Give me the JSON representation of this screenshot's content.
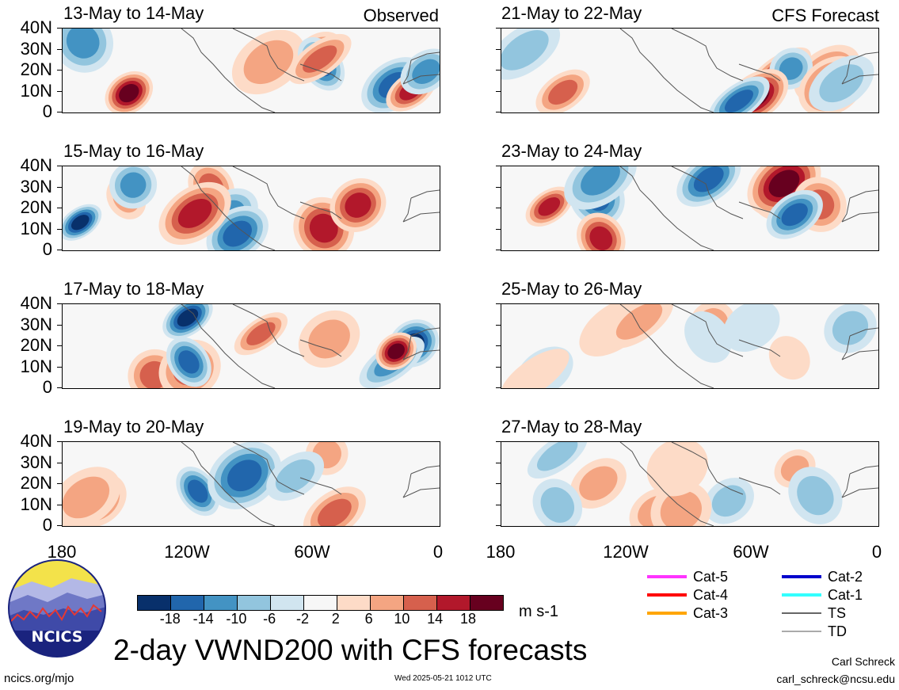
{
  "labels": {
    "observed": "Observed",
    "forecast": "CFS Forecast"
  },
  "panels": [
    {
      "title": "13-May to 14-May"
    },
    {
      "title": "21-May to 22-May"
    },
    {
      "title": "15-May to 16-May"
    },
    {
      "title": "23-May to 24-May"
    },
    {
      "title": "17-May to 18-May"
    },
    {
      "title": "25-May to 26-May"
    },
    {
      "title": "19-May to 20-May"
    },
    {
      "title": "27-May to 28-May"
    }
  ],
  "y_axis": [
    "40N",
    "30N",
    "20N",
    "10N",
    "0"
  ],
  "x_axis": [
    "180",
    "120W",
    "60W",
    "0"
  ],
  "colorbar": {
    "colors": [
      "#08306b",
      "#2166ac",
      "#4393c3",
      "#92c5de",
      "#d1e5f0",
      "#f7f7f7",
      "#fddbc7",
      "#f4a582",
      "#d6604d",
      "#b2182b",
      "#67001f"
    ],
    "ticks": [
      "-18",
      "-14",
      "-10",
      "-6",
      "-2",
      "2",
      "6",
      "10",
      "14",
      "18"
    ],
    "unit": "m s-1"
  },
  "legend": [
    {
      "label": "Cat-5",
      "color": "#ff33ff"
    },
    {
      "label": "Cat-4",
      "color": "#ff0000"
    },
    {
      "label": "Cat-3",
      "color": "#ffa500"
    },
    {
      "label": "Cat-2",
      "color": "#0000cc"
    },
    {
      "label": "Cat-1",
      "color": "#33ffff"
    },
    {
      "label": "TS",
      "color": "#666666"
    },
    {
      "label": "TD",
      "color": "#aaaaaa"
    }
  ],
  "title": "2-day VWND200 with CFS forecasts",
  "logo_text": "NCICS",
  "footer": {
    "url": "ncics.org/mjo",
    "timestamp": "Wed 2025-05-21 1012 UTC",
    "author": "Carl Schreck",
    "email": "carl_schreck@ncsu.edu"
  }
}
